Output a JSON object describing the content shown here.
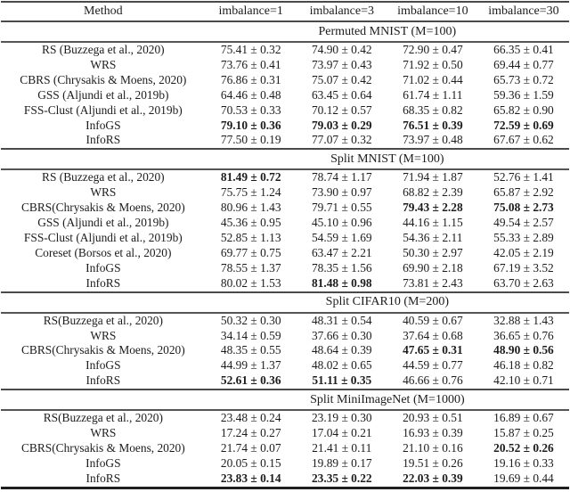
{
  "table": {
    "plus_minus": "±",
    "columns": [
      "Method",
      "imbalance=1",
      "imbalance=3",
      "imbalance=10",
      "imbalance=30"
    ],
    "sections": [
      {
        "title": "Permuted MNIST (M=100)",
        "rows": [
          {
            "method": "RS (Buzzega et al., 2020)",
            "cells": [
              {
                "mean": "75.41",
                "std": "0.32",
                "bold": false
              },
              {
                "mean": "74.90",
                "std": "0.42",
                "bold": false
              },
              {
                "mean": "72.90",
                "std": "0.47",
                "bold": false
              },
              {
                "mean": "66.35",
                "std": "0.41",
                "bold": false
              }
            ]
          },
          {
            "method": "WRS",
            "cells": [
              {
                "mean": "73.76",
                "std": "0.41",
                "bold": false
              },
              {
                "mean": "73.97",
                "std": "0.43",
                "bold": false
              },
              {
                "mean": "71.92",
                "std": "0.50",
                "bold": false
              },
              {
                "mean": "69.44",
                "std": "0.77",
                "bold": false
              }
            ]
          },
          {
            "method": "CBRS (Chrysakis & Moens, 2020)",
            "cells": [
              {
                "mean": "76.86",
                "std": "0.31",
                "bold": false
              },
              {
                "mean": "75.07",
                "std": "0.42",
                "bold": false
              },
              {
                "mean": "71.02",
                "std": "0.44",
                "bold": false
              },
              {
                "mean": "65.73",
                "std": "0.72",
                "bold": false
              }
            ]
          },
          {
            "method": "GSS (Aljundi et al., 2019b)",
            "cells": [
              {
                "mean": "64.46",
                "std": "0.48",
                "bold": false
              },
              {
                "mean": "63.45",
                "std": "0.64",
                "bold": false
              },
              {
                "mean": "61.74",
                "std": "1.11",
                "bold": false
              },
              {
                "mean": "59.36",
                "std": "1.59",
                "bold": false
              }
            ]
          },
          {
            "method": "FSS-Clust (Aljundi et al., 2019b)",
            "cells": [
              {
                "mean": "70.53",
                "std": "0.33",
                "bold": false
              },
              {
                "mean": "70.12",
                "std": "0.57",
                "bold": false
              },
              {
                "mean": "68.35",
                "std": "0.82",
                "bold": false
              },
              {
                "mean": "65.82",
                "std": "0.90",
                "bold": false
              }
            ]
          },
          {
            "method": "InfoGS",
            "cells": [
              {
                "mean": "79.10",
                "std": "0.36",
                "bold": true
              },
              {
                "mean": "79.03",
                "std": "0.29",
                "bold": true
              },
              {
                "mean": "76.51",
                "std": "0.39",
                "bold": true
              },
              {
                "mean": "72.59",
                "std": "0.69",
                "bold": true
              }
            ]
          },
          {
            "method": "InfoRS",
            "cells": [
              {
                "mean": "77.50",
                "std": "0.19",
                "bold": false
              },
              {
                "mean": "77.07",
                "std": "0.32",
                "bold": false
              },
              {
                "mean": "73.97",
                "std": "0.48",
                "bold": false
              },
              {
                "mean": "67.67",
                "std": "0.62",
                "bold": false
              }
            ]
          }
        ]
      },
      {
        "title": "Split MNIST (M=100)",
        "rows": [
          {
            "method": "RS (Buzzega et al., 2020)",
            "cells": [
              {
                "mean": "81.49",
                "std": "0.72",
                "bold": true
              },
              {
                "mean": "78.74",
                "std": "1.17",
                "bold": false
              },
              {
                "mean": "71.94",
                "std": "1.87",
                "bold": false
              },
              {
                "mean": "52.76",
                "std": "1.41",
                "bold": false
              }
            ]
          },
          {
            "method": "WRS",
            "cells": [
              {
                "mean": "75.75",
                "std": "1.24",
                "bold": false
              },
              {
                "mean": "73.90",
                "std": "0.97",
                "bold": false
              },
              {
                "mean": "68.82",
                "std": "2.39",
                "bold": false
              },
              {
                "mean": "65.87",
                "std": "2.92",
                "bold": false
              }
            ]
          },
          {
            "method": "CBRS(Chrysakis & Moens, 2020)",
            "cells": [
              {
                "mean": "80.96",
                "std": "1.43",
                "bold": false
              },
              {
                "mean": "79.71",
                "std": "0.55",
                "bold": false
              },
              {
                "mean": "79.43",
                "std": "2.28",
                "bold": true
              },
              {
                "mean": "75.08",
                "std": "2.73",
                "bold": true
              }
            ]
          },
          {
            "method": "GSS (Aljundi et al., 2019b)",
            "cells": [
              {
                "mean": "45.36",
                "std": "0.95",
                "bold": false
              },
              {
                "mean": "45.10",
                "std": "0.96",
                "bold": false
              },
              {
                "mean": "44.16",
                "std": "1.15",
                "bold": false
              },
              {
                "mean": "49.54",
                "std": "2.57",
                "bold": false
              }
            ]
          },
          {
            "method": "FSS-Clust (Aljundi et al., 2019b)",
            "cells": [
              {
                "mean": "52.85",
                "std": "1.13",
                "bold": false
              },
              {
                "mean": "54.59",
                "std": "1.69",
                "bold": false
              },
              {
                "mean": "54.36",
                "std": "2.11",
                "bold": false
              },
              {
                "mean": "55.33",
                "std": "2.89",
                "bold": false
              }
            ]
          },
          {
            "method": "Coreset (Borsos et al., 2020)",
            "cells": [
              {
                "mean": "69.77",
                "std": "0.75",
                "bold": false
              },
              {
                "mean": "63.47",
                "std": "2.21",
                "bold": false
              },
              {
                "mean": "50.30",
                "std": "2.97",
                "bold": false
              },
              {
                "mean": "42.05",
                "std": "2.19",
                "bold": false
              }
            ]
          },
          {
            "method": "InfoGS",
            "cells": [
              {
                "mean": "78.55",
                "std": "1.37",
                "bold": false
              },
              {
                "mean": "78.35",
                "std": "1.56",
                "bold": false
              },
              {
                "mean": "69.90",
                "std": "2.18",
                "bold": false
              },
              {
                "mean": "67.19",
                "std": "3.52",
                "bold": false
              }
            ]
          },
          {
            "method": "InfoRS",
            "cells": [
              {
                "mean": "80.02",
                "std": "1.53",
                "bold": false
              },
              {
                "mean": "81.48",
                "std": "0.98",
                "bold": true
              },
              {
                "mean": "73.81",
                "std": "2.43",
                "bold": false
              },
              {
                "mean": "63.70",
                "std": "2.63",
                "bold": false
              }
            ]
          }
        ]
      },
      {
        "title": "Split CIFAR10 (M=200)",
        "rows": [
          {
            "method": "RS(Buzzega et al., 2020)",
            "cells": [
              {
                "mean": "50.32",
                "std": "0.30",
                "bold": false
              },
              {
                "mean": "48.31",
                "std": "0.54",
                "bold": false
              },
              {
                "mean": "40.59",
                "std": "0.67",
                "bold": false
              },
              {
                "mean": "32.88",
                "std": "1.43",
                "bold": false
              }
            ]
          },
          {
            "method": "WRS",
            "cells": [
              {
                "mean": "34.14",
                "std": "0.59",
                "bold": false
              },
              {
                "mean": "37.66",
                "std": "0.30",
                "bold": false
              },
              {
                "mean": "37.64",
                "std": "0.68",
                "bold": false
              },
              {
                "mean": "36.65",
                "std": "0.76",
                "bold": false
              }
            ]
          },
          {
            "method": "CBRS(Chrysakis & Moens, 2020)",
            "cells": [
              {
                "mean": "48.35",
                "std": "0.55",
                "bold": false
              },
              {
                "mean": "48.64",
                "std": "0.39",
                "bold": false
              },
              {
                "mean": "47.65",
                "std": "0.31",
                "bold": true
              },
              {
                "mean": "48.90",
                "std": "0.56",
                "bold": true
              }
            ]
          },
          {
            "method": "InfoGS",
            "cells": [
              {
                "mean": "44.99",
                "std": "1.37",
                "bold": false
              },
              {
                "mean": "48.02",
                "std": "0.65",
                "bold": false
              },
              {
                "mean": "44.59",
                "std": "0.77",
                "bold": false
              },
              {
                "mean": "46.18",
                "std": "0.82",
                "bold": false
              }
            ]
          },
          {
            "method": "InfoRS",
            "cells": [
              {
                "mean": "52.61",
                "std": "0.36",
                "bold": true
              },
              {
                "mean": "51.11",
                "std": "0.35",
                "bold": true
              },
              {
                "mean": "46.66",
                "std": "0.76",
                "bold": false
              },
              {
                "mean": "42.10",
                "std": "0.71",
                "bold": false
              }
            ]
          }
        ]
      },
      {
        "title": "Split MiniImageNet (M=1000)",
        "rows": [
          {
            "method": "RS(Buzzega et al., 2020)",
            "cells": [
              {
                "mean": "23.48",
                "std": "0.24",
                "bold": false
              },
              {
                "mean": "23.19",
                "std": "0.30",
                "bold": false
              },
              {
                "mean": "20.93",
                "std": "0.51",
                "bold": false
              },
              {
                "mean": "16.89",
                "std": "0.67",
                "bold": false
              }
            ]
          },
          {
            "method": "WRS",
            "cells": [
              {
                "mean": "17.24",
                "std": "0.27",
                "bold": false
              },
              {
                "mean": "17.04",
                "std": "0.21",
                "bold": false
              },
              {
                "mean": "16.93",
                "std": "0.39",
                "bold": false
              },
              {
                "mean": "15.87",
                "std": "0.25",
                "bold": false
              }
            ]
          },
          {
            "method": "CBRS(Chrysakis & Moens, 2020)",
            "cells": [
              {
                "mean": "21.74",
                "std": "0.07",
                "bold": false
              },
              {
                "mean": "21.41",
                "std": "0.11",
                "bold": false
              },
              {
                "mean": "21.10",
                "std": "0.16",
                "bold": false
              },
              {
                "mean": "20.52",
                "std": "0.26",
                "bold": true
              }
            ]
          },
          {
            "method": "InfoGS",
            "cells": [
              {
                "mean": "20.05",
                "std": "0.15",
                "bold": false
              },
              {
                "mean": "19.89",
                "std": "0.17",
                "bold": false
              },
              {
                "mean": "19.51",
                "std": "0.26",
                "bold": false
              },
              {
                "mean": "19.16",
                "std": "0.33",
                "bold": false
              }
            ]
          },
          {
            "method": "InfoRS",
            "cells": [
              {
                "mean": "23.83",
                "std": "0.14",
                "bold": true
              },
              {
                "mean": "23.35",
                "std": "0.22",
                "bold": true
              },
              {
                "mean": "22.03",
                "std": "0.39",
                "bold": true
              },
              {
                "mean": "19.69",
                "std": "0.44",
                "bold": false
              }
            ]
          }
        ]
      }
    ]
  }
}
